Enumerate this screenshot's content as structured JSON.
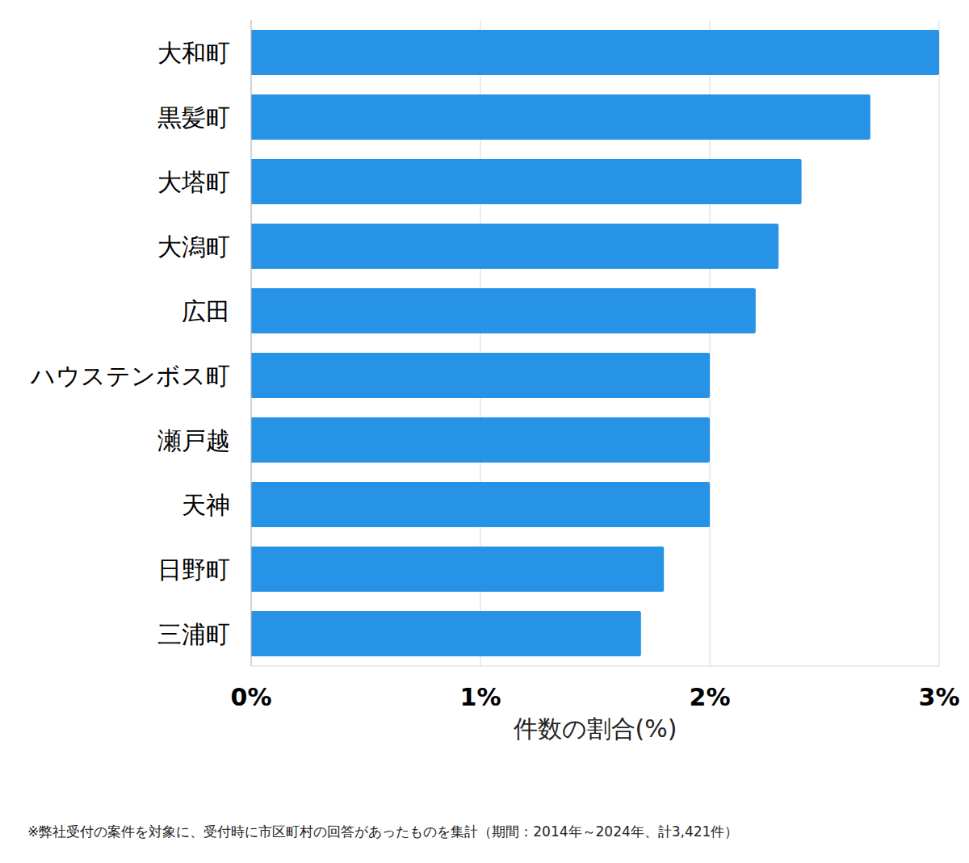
{
  "chart_data": {
    "type": "bar",
    "orientation": "horizontal",
    "categories": [
      "大和町",
      "黒髪町",
      "大塔町",
      "大潟町",
      "広田",
      "ハウステンボス町",
      "瀬戸越",
      "天神",
      "日野町",
      "三浦町"
    ],
    "values": [
      3.0,
      2.7,
      2.4,
      2.3,
      2.2,
      2.0,
      2.0,
      2.0,
      1.8,
      1.7
    ],
    "color": "#2693e6",
    "xlim": [
      0,
      3
    ],
    "xticks": [
      {
        "value": 0,
        "label": "0%"
      },
      {
        "value": 1,
        "label": "1%"
      },
      {
        "value": 2,
        "label": "2%"
      },
      {
        "value": 3,
        "label": "3%"
      }
    ],
    "x_label": "件数の割合(%)",
    "grid": true,
    "footnote": "※弊社受付の案件を対象に、受付時に市区町村の回答があったものを集計（期間：2014年～2024年、計3,421件）"
  }
}
